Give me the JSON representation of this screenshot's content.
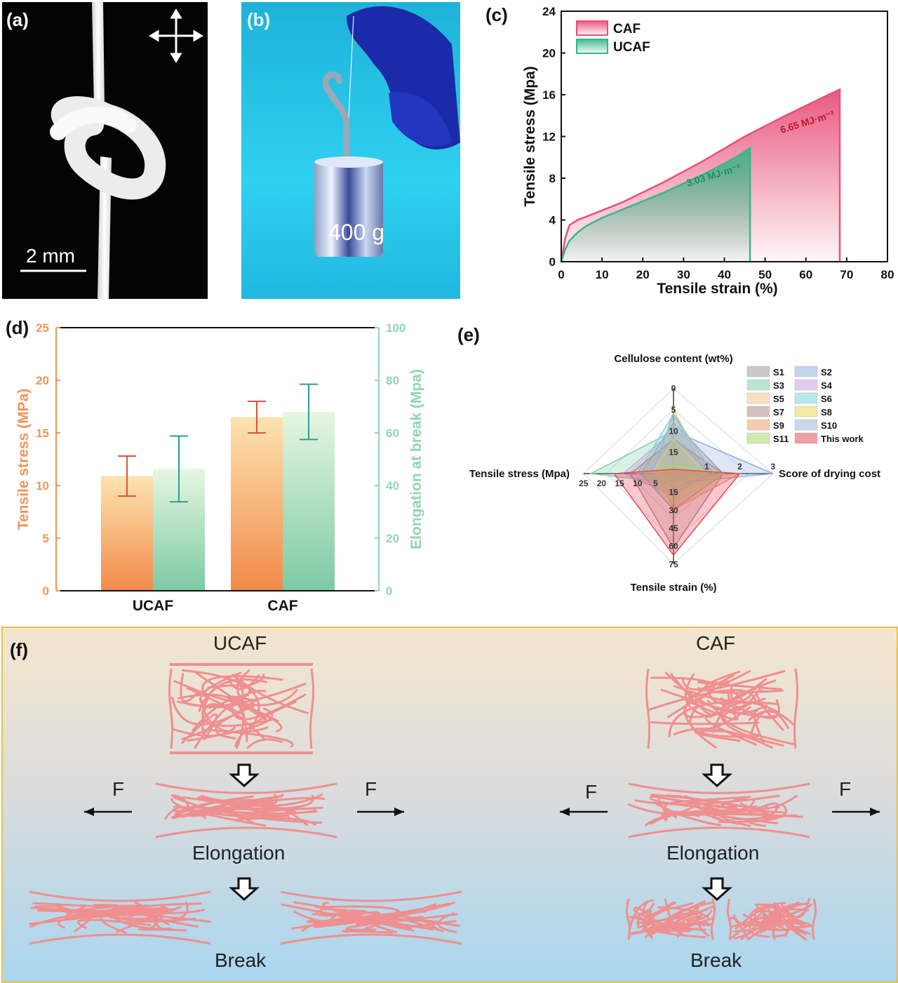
{
  "panels": {
    "a": {
      "letter": "(a)",
      "scale_bar": "2 mm"
    },
    "b": {
      "letter": "(b)",
      "weight_label": "400 g"
    },
    "c": {
      "letter": "(c)"
    },
    "d": {
      "letter": "(d)"
    },
    "e": {
      "letter": "(e)"
    },
    "f": {
      "letter": "(f)"
    }
  },
  "colors": {
    "caf_red": "#e8507a",
    "ucaf_green": "#3ab58a",
    "orange": "#f0955a",
    "mint": "#8fd6b2",
    "fiber_pink": "#ef8f8f"
  },
  "chart_data": [
    {
      "type": "area",
      "panel": "c",
      "xlabel": "Tensile strain (%)",
      "ylabel": "Tensile stress (Mpa)",
      "xlim": [
        0,
        80
      ],
      "ylim": [
        0,
        24
      ],
      "xticks": [
        0,
        10,
        20,
        30,
        40,
        50,
        60,
        70,
        80
      ],
      "yticks": [
        0,
        4,
        8,
        12,
        16,
        20,
        24
      ],
      "legend_position": "top-left",
      "series": [
        {
          "name": "CAF",
          "color": "#e8507a",
          "x": [
            0,
            1,
            2,
            4,
            8,
            15,
            25,
            35,
            45,
            55,
            65,
            68.3
          ],
          "y": [
            0,
            2.3,
            3.5,
            4.0,
            4.6,
            5.7,
            7.6,
            9.7,
            12.0,
            14.0,
            15.9,
            16.5
          ],
          "annotation": "6.65 MJ·m⁻³"
        },
        {
          "name": "UCAF",
          "color": "#3ab58a",
          "x": [
            0,
            1,
            2,
            4,
            6,
            10,
            15,
            20,
            25,
            30,
            35,
            40,
            44,
            46.3
          ],
          "y": [
            0,
            1.2,
            2.0,
            2.8,
            3.4,
            4.2,
            5.0,
            5.8,
            6.6,
            7.5,
            8.4,
            9.4,
            10.3,
            10.9
          ],
          "annotation": "3.03 MJ·m⁻³"
        }
      ]
    },
    {
      "type": "bar",
      "panel": "d",
      "categories": [
        "UCAF",
        "CAF"
      ],
      "ylabel": "Tensile stress (MPa)",
      "ylabel_right": "Elongation at break (Mpa)",
      "ylim": [
        0,
        25
      ],
      "ylim_right": [
        0,
        100
      ],
      "yticks": [
        0,
        5,
        10,
        15,
        20,
        25
      ],
      "yticks_right": [
        0,
        20,
        40,
        60,
        80,
        100
      ],
      "series": [
        {
          "name": "Tensile stress",
          "axis": "left",
          "values": [
            10.9,
            16.5
          ],
          "errors": [
            1.9,
            1.5
          ]
        },
        {
          "name": "Elongation at break",
          "axis": "right",
          "values": [
            46.3,
            68.0
          ],
          "errors": [
            12.5,
            10.5
          ]
        }
      ]
    },
    {
      "type": "radar",
      "panel": "e",
      "axes": [
        {
          "label": "Cellulose content (wt%)",
          "ticks": [
            "0",
            "5",
            "10",
            "15"
          ],
          "max": 20,
          "reversed": true
        },
        {
          "label": "Score of drying cost",
          "ticks": [
            "1",
            "2",
            "3"
          ],
          "max": 3,
          "reversed": false
        },
        {
          "label": "Tensile strain (%)",
          "ticks": [
            "15",
            "30",
            "45",
            "60",
            "75"
          ],
          "max": 75,
          "reversed": false
        },
        {
          "label": "Tensile stress (Mpa)",
          "ticks": [
            "5",
            "10",
            "15",
            "20",
            "25"
          ],
          "max": 25,
          "reversed": false
        }
      ],
      "series": [
        {
          "name": "S1",
          "color": "#9a9a9a",
          "values": [
            12,
            1.5,
            30,
            9
          ]
        },
        {
          "name": "S2",
          "color": "#8fb0e0",
          "values": [
            10,
            3,
            8,
            3
          ]
        },
        {
          "name": "S3",
          "color": "#7fd0a8",
          "values": [
            10,
            0.5,
            8,
            23
          ]
        },
        {
          "name": "S4",
          "color": "#c9a3e0",
          "values": [
            10,
            1,
            18,
            14
          ]
        },
        {
          "name": "S5",
          "color": "#f3c88a",
          "values": [
            15,
            1,
            5,
            5
          ]
        },
        {
          "name": "S6",
          "color": "#7fd6d6",
          "values": [
            14,
            1,
            10,
            10
          ]
        },
        {
          "name": "S7",
          "color": "#b58a8a",
          "values": [
            8,
            1.5,
            62,
            12
          ]
        },
        {
          "name": "S8",
          "color": "#e6d95a",
          "values": [
            8,
            1,
            10,
            6
          ]
        },
        {
          "name": "S9",
          "color": "#f0a06a",
          "values": [
            1,
            2,
            30,
            4
          ]
        },
        {
          "name": "S10",
          "color": "#9fb4d8",
          "values": [
            14,
            1.2,
            12,
            6
          ]
        },
        {
          "name": "S11",
          "color": "#a8d86a",
          "values": [
            2,
            1.5,
            24,
            8
          ]
        },
        {
          "name": "This work",
          "color": "#e84a5a",
          "values": [
            1,
            2,
            68,
            16.5
          ]
        }
      ]
    }
  ],
  "diagram_f": {
    "left_title": "UCAF",
    "right_title": "CAF",
    "force_label": "F",
    "elongation_label": "Elongation",
    "break_label": "Break"
  }
}
